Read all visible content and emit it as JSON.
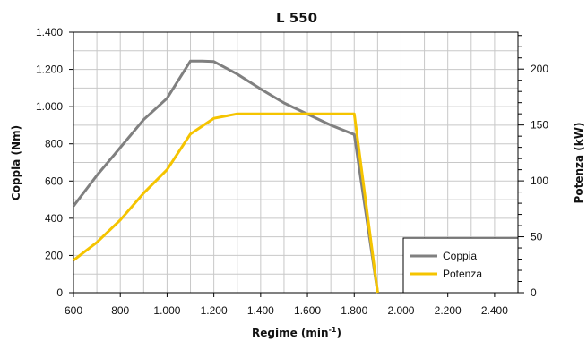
{
  "chart_data": {
    "type": "line",
    "title": "L 550",
    "xlabel": "Regime (min",
    "xlabel_sup": "-1",
    "xlabel_close": ")",
    "ylabel_left": "Coppia (Nm)",
    "ylabel_right": "Potenza (kW)",
    "xlim": [
      600,
      2500
    ],
    "ylim_left": [
      0,
      1400
    ],
    "ylim_right": [
      0,
      233
    ],
    "x_ticks": [
      600,
      800,
      1000,
      1200,
      1400,
      1600,
      1800,
      2000,
      2200,
      2400
    ],
    "x_tick_labels": [
      "600",
      "800",
      "1.000",
      "1.200",
      "1.400",
      "1.600",
      "1.800",
      "2.000",
      "2.200",
      "2.400"
    ],
    "y_left_ticks": [
      0,
      200,
      400,
      600,
      800,
      1000,
      1200,
      1400
    ],
    "y_left_tick_labels": [
      "0",
      "200",
      "400",
      "600",
      "800",
      "1.000",
      "1.200",
      "1.400"
    ],
    "y_right_ticks": [
      0,
      50,
      100,
      150,
      200
    ],
    "y_right_tick_labels": [
      "0",
      "50",
      "100",
      "150",
      "200"
    ],
    "grid": true,
    "legend_position": "bottom-right",
    "series": [
      {
        "name": "Coppia",
        "axis": "left",
        "color": "#808080",
        "x": [
          600,
          700,
          800,
          900,
          1000,
          1100,
          1150,
          1200,
          1300,
          1400,
          1500,
          1600,
          1700,
          1800,
          1900
        ],
        "y": [
          465,
          630,
          780,
          930,
          1045,
          1245,
          1245,
          1242,
          1175,
          1095,
          1020,
          960,
          900,
          850,
          0
        ]
      },
      {
        "name": "Potenza",
        "axis": "right",
        "color": "#f5c400",
        "x": [
          600,
          700,
          800,
          900,
          1000,
          1100,
          1200,
          1300,
          1400,
          1500,
          1600,
          1700,
          1800,
          1900
        ],
        "y": [
          29,
          45,
          65,
          89,
          110,
          142,
          156,
          160,
          160,
          160,
          160,
          160,
          160,
          0
        ]
      }
    ]
  }
}
